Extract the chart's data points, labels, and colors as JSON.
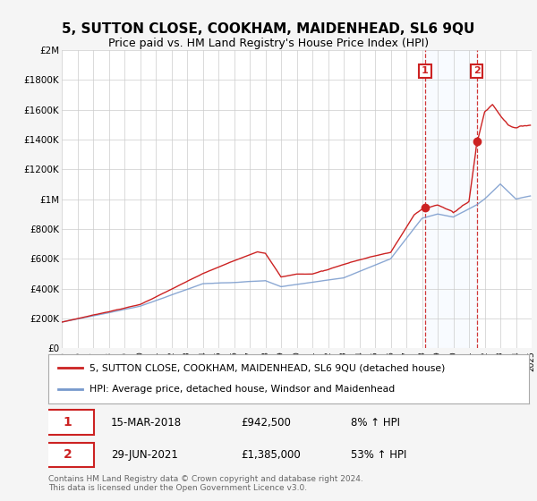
{
  "title": "5, SUTTON CLOSE, COOKHAM, MAIDENHEAD, SL6 9QU",
  "subtitle": "Price paid vs. HM Land Registry's House Price Index (HPI)",
  "legend_line1": "5, SUTTON CLOSE, COOKHAM, MAIDENHEAD, SL6 9QU (detached house)",
  "legend_line2": "HPI: Average price, detached house, Windsor and Maidenhead",
  "annotation1_date": "15-MAR-2018",
  "annotation1_price": "£942,500",
  "annotation1_pct": "8% ↑ HPI",
  "annotation2_date": "29-JUN-2021",
  "annotation2_price": "£1,385,000",
  "annotation2_pct": "53% ↑ HPI",
  "footer": "Contains HM Land Registry data © Crown copyright and database right 2024.\nThis data is licensed under the Open Government Licence v3.0.",
  "red_color": "#cc2222",
  "blue_color": "#7799cc",
  "background_color": "#f5f5f5",
  "plot_bg_color": "#ffffff",
  "annotation_box_color": "#cc2222",
  "shade_color": "#ddeeff",
  "ylim": [
    0,
    2000000
  ],
  "yticks": [
    0,
    200000,
    400000,
    600000,
    800000,
    1000000,
    1200000,
    1400000,
    1600000,
    1800000,
    2000000
  ],
  "year_start": 1995,
  "year_end": 2025,
  "ann1_year": 2018.2,
  "ann1_price": 942500,
  "ann2_year": 2021.5,
  "ann2_price": 1385000
}
